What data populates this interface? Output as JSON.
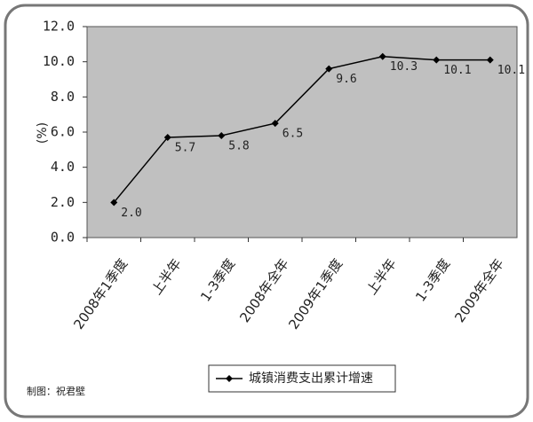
{
  "chart_data": {
    "type": "line",
    "y_label": "(%)",
    "categories": [
      "2008年1季度",
      "上半年",
      "1-3季度",
      "2008年全年",
      "2009年1季度",
      "上半年",
      "1-3季度",
      "2009年全年"
    ],
    "series": [
      {
        "name": "城镇消费支出累计增速",
        "color": "#000000",
        "values": [
          2.0,
          5.7,
          5.8,
          6.5,
          9.6,
          10.3,
          10.1,
          10.1
        ],
        "value_labels": [
          "2.0",
          "5.7",
          "5.8",
          "6.5",
          "9.6",
          "10.3",
          "10.1",
          "10.1"
        ]
      }
    ],
    "ylim": [
      0,
      12
    ],
    "yticks": [
      {
        "value": 0,
        "label": "0.0"
      },
      {
        "value": 2,
        "label": "2.0"
      },
      {
        "value": 4,
        "label": "4.0"
      },
      {
        "value": 6,
        "label": "6.0"
      },
      {
        "value": 8,
        "label": "8.0"
      },
      {
        "value": 10,
        "label": "10.0"
      },
      {
        "value": 12,
        "label": "12.0"
      }
    ],
    "plot_background": "#c0c0c0",
    "legend": "bottom",
    "credit": "制图：祝君壁"
  }
}
